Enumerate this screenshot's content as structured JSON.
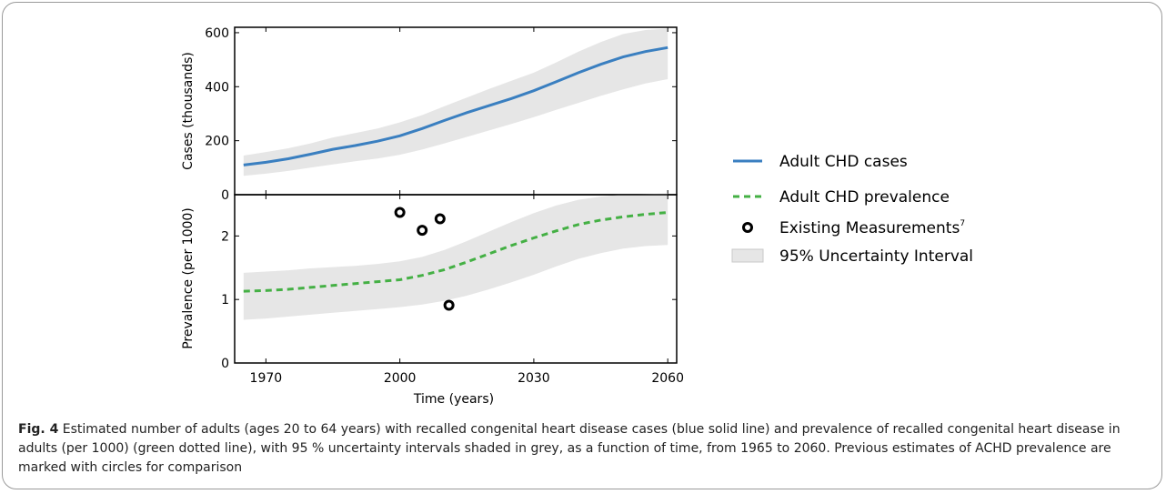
{
  "figure": {
    "label": "Fig. 4",
    "caption": "Estimated number of adults (ages 20 to 64 years) with recalled congenital heart disease cases (blue solid line) and prevalence of recalled congenital heart disease in adults (per 1000) (green dotted line), with 95 % uncertainty intervals shaded in grey, as a function of time, from 1965 to 2060. Previous estimates of ACHD prevalence are marked with circles for comparison"
  },
  "colors": {
    "cases": "#3a7fc0",
    "prevalence": "#44b044",
    "band": "#e6e6e6",
    "marker": "#000000"
  },
  "legend": {
    "cases": "Adult CHD cases",
    "prevalence": "Adult CHD prevalence",
    "measurements": "Existing Measurements",
    "measurements_sup": "7",
    "interval": "95% Uncertainty Interval"
  },
  "chart_data": [
    {
      "type": "line",
      "xlabel": "",
      "ylabel": "Cases (thousands)",
      "xlim": [
        1963,
        2062
      ],
      "ylim": [
        0,
        620
      ],
      "yticks": [
        0,
        200,
        400,
        600
      ],
      "series": [
        {
          "name": "Adult CHD cases",
          "x": [
            1965,
            1970,
            1975,
            1980,
            1985,
            1990,
            1995,
            2000,
            2005,
            2010,
            2015,
            2020,
            2025,
            2030,
            2035,
            2040,
            2045,
            2050,
            2055,
            2060
          ],
          "y": [
            110,
            120,
            133,
            150,
            168,
            182,
            198,
            218,
            245,
            275,
            304,
            330,
            356,
            385,
            418,
            452,
            483,
            510,
            530,
            545
          ],
          "lower": [
            70,
            78,
            88,
            100,
            112,
            124,
            134,
            148,
            167,
            190,
            214,
            238,
            262,
            287,
            314,
            340,
            366,
            390,
            412,
            428
          ],
          "upper": [
            145,
            158,
            172,
            190,
            212,
            228,
            245,
            268,
            295,
            328,
            360,
            392,
            422,
            452,
            490,
            530,
            565,
            595,
            610,
            615
          ]
        }
      ]
    },
    {
      "type": "line",
      "xlabel": "Time (years)",
      "ylabel": "Prevalence (per 1000)",
      "xlim": [
        1963,
        2062
      ],
      "ylim": [
        0,
        2.65
      ],
      "yticks": [
        0,
        1,
        2
      ],
      "xticks": [
        1970,
        2000,
        2030,
        2060
      ],
      "series": [
        {
          "name": "Adult CHD prevalence",
          "x": [
            1965,
            1970,
            1975,
            1980,
            1985,
            1990,
            1995,
            2000,
            2005,
            2010,
            2015,
            2020,
            2025,
            2030,
            2035,
            2040,
            2045,
            2050,
            2055,
            2060
          ],
          "y": [
            1.13,
            1.14,
            1.16,
            1.19,
            1.22,
            1.25,
            1.28,
            1.31,
            1.38,
            1.47,
            1.59,
            1.72,
            1.85,
            1.97,
            2.08,
            2.18,
            2.25,
            2.3,
            2.34,
            2.37
          ],
          "lower": [
            0.68,
            0.7,
            0.73,
            0.76,
            0.79,
            0.82,
            0.85,
            0.88,
            0.92,
            0.98,
            1.06,
            1.16,
            1.27,
            1.39,
            1.52,
            1.64,
            1.73,
            1.8,
            1.84,
            1.86
          ],
          "upper": [
            1.42,
            1.44,
            1.46,
            1.49,
            1.51,
            1.53,
            1.56,
            1.6,
            1.67,
            1.78,
            1.92,
            2.07,
            2.22,
            2.36,
            2.48,
            2.57,
            2.62,
            2.65,
            2.66,
            2.67
          ]
        },
        {
          "name": "Existing Measurements",
          "type": "scatter",
          "x": [
            2000,
            2005,
            2009,
            2011
          ],
          "y": [
            2.37,
            2.09,
            2.27,
            0.91
          ]
        }
      ]
    }
  ]
}
